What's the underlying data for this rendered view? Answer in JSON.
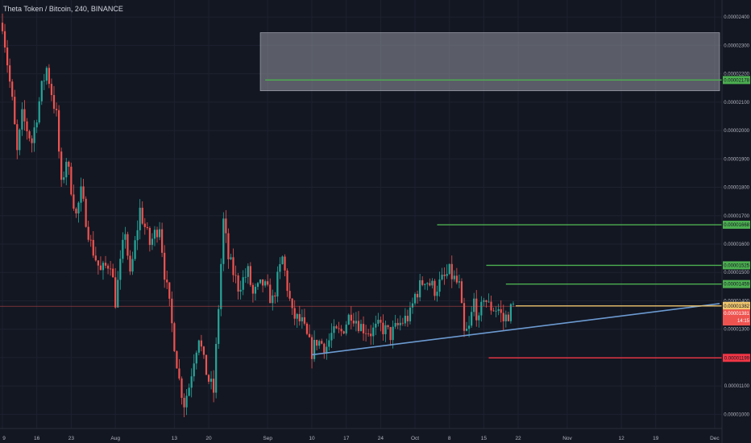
{
  "chart_data": {
    "type": "candlestick",
    "title": "Theta Token / Bitcoin, 240, BINANCE",
    "ylim": [
      9.5e-06,
      2.46e-05
    ],
    "y_ticks": [
      {
        "label": "0.00002400",
        "value": 2.4e-05
      },
      {
        "label": "0.00002300",
        "value": 2.3e-05
      },
      {
        "label": "0.00002200",
        "value": 2.2e-05
      },
      {
        "label": "0.00002100",
        "value": 2.1e-05
      },
      {
        "label": "0.00002000",
        "value": 2e-05
      },
      {
        "label": "0.00001900",
        "value": 1.9e-05
      },
      {
        "label": "0.00001800",
        "value": 1.8e-05
      },
      {
        "label": "0.00001700",
        "value": 1.7e-05
      },
      {
        "label": "0.00001600",
        "value": 1.6e-05
      },
      {
        "label": "0.00001500",
        "value": 1.5e-05
      },
      {
        "label": "0.00001400",
        "value": 1.4e-05
      },
      {
        "label": "0.00001300",
        "value": 1.3e-05
      },
      {
        "label": "0.00001200",
        "value": 1.2e-05
      },
      {
        "label": "0.00001100",
        "value": 1.1e-05
      },
      {
        "label": "0.00001000",
        "value": 1e-05
      }
    ],
    "x_ticks": [
      {
        "label": "9",
        "day": 0
      },
      {
        "label": "16",
        "day": 7
      },
      {
        "label": "23",
        "day": 14
      },
      {
        "label": "Aug",
        "day": 23
      },
      {
        "label": "13",
        "day": 35
      },
      {
        "label": "20",
        "day": 42
      },
      {
        "label": "Sep",
        "day": 54
      },
      {
        "label": "10",
        "day": 63
      },
      {
        "label": "17",
        "day": 70
      },
      {
        "label": "24",
        "day": 77
      },
      {
        "label": "Oct",
        "day": 84
      },
      {
        "label": "8",
        "day": 91
      },
      {
        "label": "15",
        "day": 98
      },
      {
        "label": "22",
        "day": 105
      },
      {
        "label": "Nov",
        "day": 115
      },
      {
        "label": "12",
        "day": 126
      },
      {
        "label": "19",
        "day": 133
      },
      {
        "label": "Dec",
        "day": 145
      }
    ],
    "xlim_days": [
      0,
      146
    ],
    "price_path": [
      [
        0,
        2.38e-05
      ],
      [
        2,
        2.1e-05
      ],
      [
        3,
        1.92e-05
      ],
      [
        4,
        2.05e-05
      ],
      [
        6,
        1.96e-05
      ],
      [
        8,
        2.15e-05
      ],
      [
        9,
        2.22e-05
      ],
      [
        11,
        2.05e-05
      ],
      [
        12,
        1.8e-05
      ],
      [
        13,
        1.9e-05
      ],
      [
        15,
        1.7e-05
      ],
      [
        16,
        1.78e-05
      ],
      [
        18,
        1.6e-05
      ],
      [
        20,
        1.5e-05
      ],
      [
        22,
        1.54e-05
      ],
      [
        23,
        1.4e-05
      ],
      [
        25,
        1.65e-05
      ],
      [
        26,
        1.48e-05
      ],
      [
        28,
        1.72e-05
      ],
      [
        30,
        1.6e-05
      ],
      [
        32,
        1.67e-05
      ],
      [
        33,
        1.5e-05
      ],
      [
        34,
        1.38e-05
      ],
      [
        35,
        1.25e-05
      ],
      [
        36,
        1.12e-05
      ],
      [
        37,
        1.04e-05
      ],
      [
        38,
        1.1e-05
      ],
      [
        39,
        1.2e-05
      ],
      [
        40,
        1.28e-05
      ],
      [
        41,
        1.18e-05
      ],
      [
        42,
        1.12e-05
      ],
      [
        43,
        1.08e-05
      ],
      [
        44,
        1.38e-05
      ],
      [
        45,
        1.68e-05
      ],
      [
        46,
        1.55e-05
      ],
      [
        47,
        1.5e-05
      ],
      [
        48,
        1.45e-05
      ],
      [
        50,
        1.5e-05
      ],
      [
        51,
        1.42e-05
      ],
      [
        53,
        1.46e-05
      ],
      [
        55,
        1.4e-05
      ],
      [
        57,
        1.55e-05
      ],
      [
        58,
        1.45e-05
      ],
      [
        59,
        1.35e-05
      ],
      [
        61,
        1.32e-05
      ],
      [
        63,
        1.22e-05
      ],
      [
        64,
        1.26e-05
      ],
      [
        66,
        1.24e-05
      ],
      [
        67,
        1.28e-05
      ],
      [
        69,
        1.29e-05
      ],
      [
        71,
        1.36e-05
      ],
      [
        73,
        1.31e-05
      ],
      [
        75,
        1.29e-05
      ],
      [
        77,
        1.31e-05
      ],
      [
        79,
        1.28e-05
      ],
      [
        81,
        1.32e-05
      ],
      [
        83,
        1.35e-05
      ],
      [
        84,
        1.42e-05
      ],
      [
        86,
        1.48e-05
      ],
      [
        88,
        1.44e-05
      ],
      [
        89,
        1.46e-05
      ],
      [
        91,
        1.5e-05
      ],
      [
        93,
        1.45e-05
      ],
      [
        94,
        1.28e-05
      ],
      [
        95,
        1.3e-05
      ],
      [
        96,
        1.4e-05
      ],
      [
        97,
        1.32e-05
      ],
      [
        98,
        1.42e-05
      ],
      [
        99,
        1.38e-05
      ],
      [
        101,
        1.37e-05
      ],
      [
        102,
        1.33e-05
      ],
      [
        104,
        1.38e-05
      ]
    ],
    "horizontal_levels": [
      {
        "label": "0.00002178",
        "value": 2.178e-05,
        "color": "#4caf50",
        "day_start": 53.5
      },
      {
        "label": "0.00001668",
        "value": 1.668e-05,
        "color": "#4caf50",
        "day_start": 88.5
      },
      {
        "label": "0.00001525",
        "value": 1.525e-05,
        "color": "#4caf50",
        "day_start": 98.5
      },
      {
        "label": "0.00001459",
        "value": 1.459e-05,
        "color": "#4caf50",
        "day_start": 102.5
      },
      {
        "label": "0.00001382",
        "value": 1.382e-05,
        "color": "#f0c66e",
        "day_start": 104.5
      },
      {
        "label": "0.00001199",
        "value": 1.199e-05,
        "color": "#f23645",
        "day_start": 99.0
      }
    ],
    "zone": {
      "day_start": 52.5,
      "day_end": 146,
      "y_top": 2.345e-05,
      "y_bottom": 2.14e-05,
      "color": "#9598a1"
    },
    "trendline": {
      "day_start": 63,
      "y_start": 1.21e-05,
      "day_end": 146,
      "y_end": 1.39e-05,
      "color": "#6c9bd2"
    },
    "current_price": {
      "label": "0.00001381",
      "value": 1.381e-05,
      "countdown": "14:15"
    },
    "colors": {
      "up": "#26a69a",
      "down": "#ef5350"
    }
  }
}
